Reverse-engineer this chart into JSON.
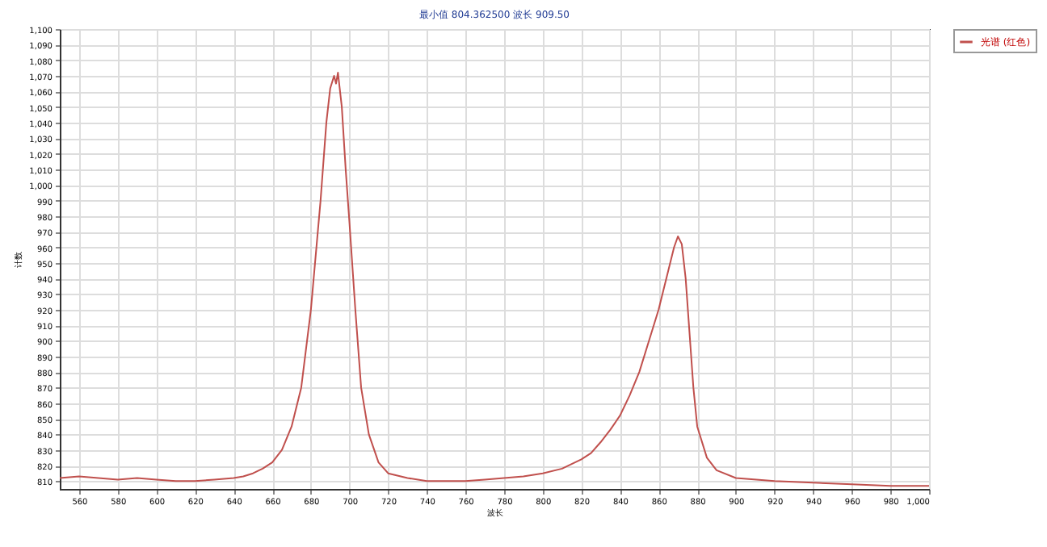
{
  "chart_data": {
    "type": "line",
    "title": "最小值 804.362500 波长 909.50",
    "xlabel": "波长",
    "ylabel": "计数",
    "x": [
      550,
      560,
      570,
      580,
      590,
      600,
      610,
      620,
      630,
      640,
      645,
      650,
      655,
      660,
      665,
      670,
      675,
      680,
      685,
      688,
      690,
      692,
      693,
      694,
      696,
      698,
      700,
      703,
      706,
      710,
      715,
      720,
      730,
      740,
      750,
      760,
      770,
      780,
      790,
      800,
      810,
      820,
      825,
      830,
      835,
      840,
      845,
      850,
      855,
      860,
      865,
      868,
      870,
      872,
      874,
      876,
      878,
      880,
      885,
      890,
      900,
      920,
      940,
      960,
      980,
      1000
    ],
    "series": [
      {
        "name": "光谱 (红色)",
        "color": "#c0504d",
        "values": [
          812,
          813,
          812,
          811,
          812,
          811,
          810,
          810,
          811,
          812,
          813,
          815,
          818,
          822,
          830,
          845,
          870,
          920,
          990,
          1040,
          1062,
          1070,
          1065,
          1072,
          1050,
          1010,
          975,
          920,
          870,
          840,
          822,
          815,
          812,
          810,
          810,
          810,
          811,
          812,
          813,
          815,
          818,
          824,
          828,
          835,
          843,
          852,
          865,
          880,
          900,
          920,
          945,
          960,
          967,
          962,
          940,
          905,
          870,
          845,
          825,
          817,
          812,
          810,
          809,
          808,
          807,
          807
        ]
      }
    ],
    "xlim": [
      550,
      1000
    ],
    "xticks": [
      560,
      580,
      600,
      620,
      640,
      660,
      680,
      700,
      720,
      740,
      760,
      780,
      800,
      820,
      840,
      860,
      880,
      900,
      920,
      940,
      960,
      980,
      {
        "value": 1000,
        "label": "1,000"
      }
    ],
    "ylim": [
      805,
      1100
    ],
    "yticks": [
      810,
      820,
      830,
      840,
      850,
      860,
      870,
      880,
      890,
      900,
      910,
      920,
      930,
      940,
      950,
      960,
      970,
      980,
      990,
      {
        "value": 1000,
        "label": "1,000"
      },
      {
        "value": 1010,
        "label": "1,010"
      },
      {
        "value": 1020,
        "label": "1,020"
      },
      {
        "value": 1030,
        "label": "1,030"
      },
      {
        "value": 1040,
        "label": "1,040"
      },
      {
        "value": 1050,
        "label": "1,050"
      },
      {
        "value": 1060,
        "label": "1,060"
      },
      {
        "value": 1070,
        "label": "1,070"
      },
      {
        "value": 1080,
        "label": "1,080"
      },
      {
        "value": 1090,
        "label": "1,090"
      },
      {
        "value": 1100,
        "label": "1,100"
      }
    ],
    "grid": true,
    "legend": "top right",
    "marker": "none",
    "line_style": "solid"
  }
}
